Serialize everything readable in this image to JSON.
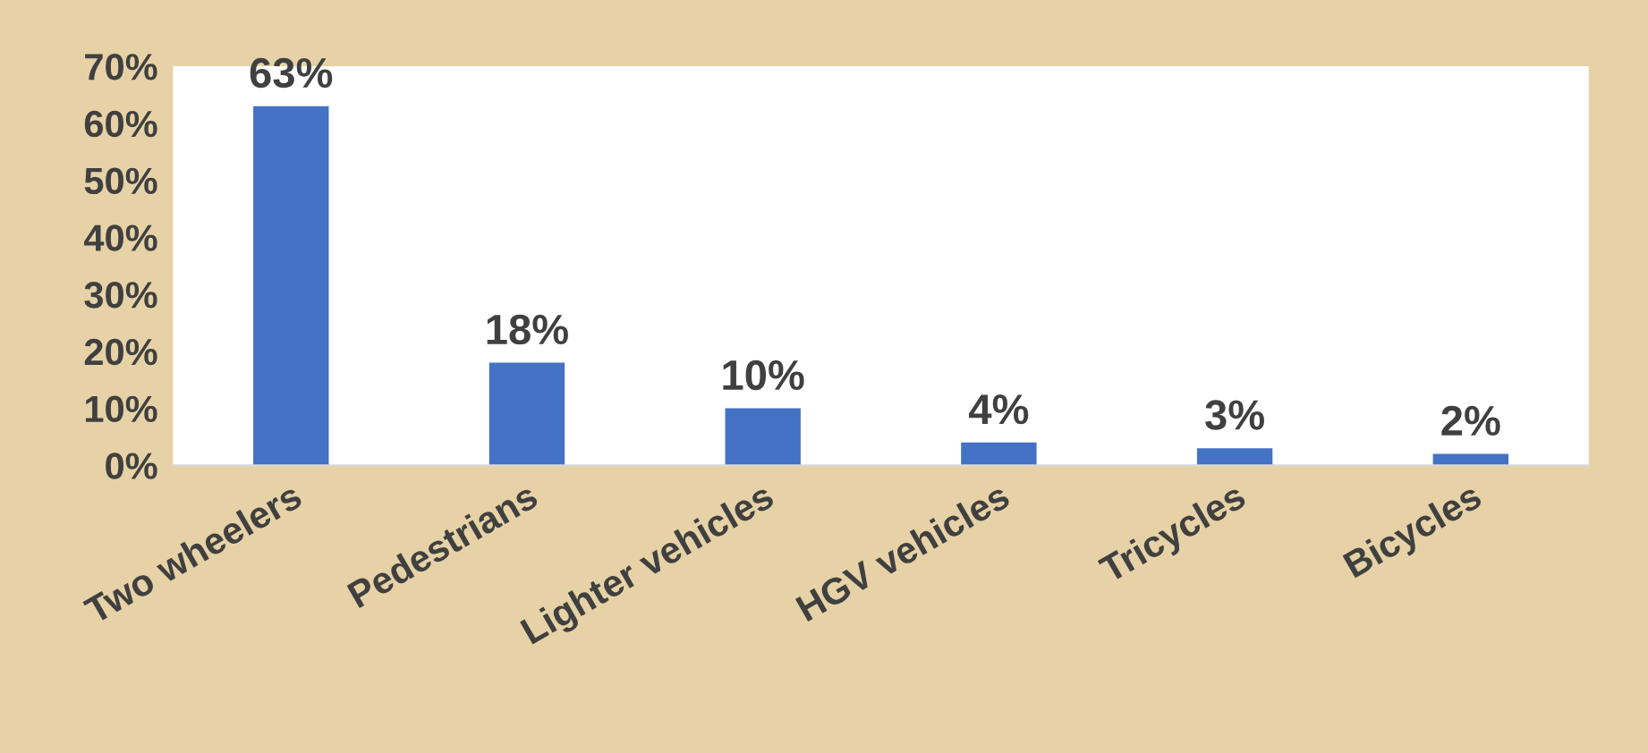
{
  "chart_data": {
    "type": "bar",
    "categories": [
      "Two wheelers",
      "Pedestrians",
      "Lighter vehicles",
      "HGV vehicles",
      "Tricycles",
      "Bicycles"
    ],
    "values": [
      63,
      18,
      10,
      4,
      3,
      2
    ],
    "value_labels": [
      "63%",
      "18%",
      "10%",
      "4%",
      "3%",
      "2%"
    ],
    "color": "#4472c4",
    "ylim": [
      0,
      70
    ],
    "yticks": [
      {
        "value": 0,
        "label": "0%"
      },
      {
        "value": 10,
        "label": "10%"
      },
      {
        "value": 20,
        "label": "20%"
      },
      {
        "value": 30,
        "label": "30%"
      },
      {
        "value": 40,
        "label": "40%"
      },
      {
        "value": 50,
        "label": "50%"
      },
      {
        "value": 60,
        "label": "60%"
      },
      {
        "value": 70,
        "label": "70%"
      }
    ],
    "grid": false,
    "legend": false
  }
}
